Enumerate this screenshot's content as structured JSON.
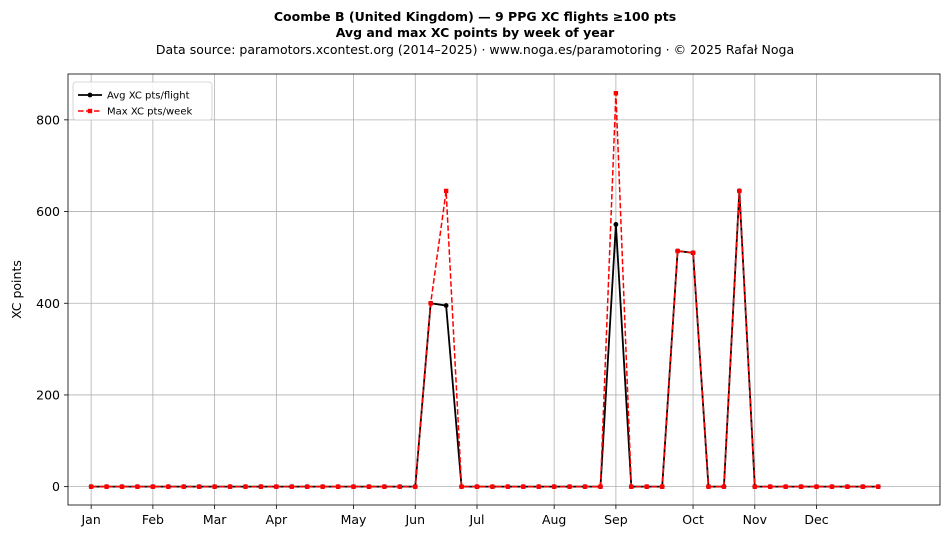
{
  "header": {
    "title_line1": "Coombe B (United Kingdom)  —  9 PPG XC flights ≥100 pts",
    "title_line2": "Avg and max XC points by week of year",
    "title_line3": "Data source: paramotors.xcontest.org (2014–2025)  ·  www.noga.es/paramotoring  ·  © 2025 Rafał Noga"
  },
  "chart_data": {
    "type": "line",
    "title": "Coombe B (United Kingdom)  —  9 PPG XC flights ≥100 pts",
    "subtitle": "Avg and max XC points by week of year",
    "xlabel": "",
    "ylabel": "XC points",
    "x_axis": "week of year",
    "xlim": [
      -1.5,
      55
    ],
    "ylim": [
      -40,
      900
    ],
    "y_ticks": [
      0,
      200,
      400,
      600,
      800
    ],
    "x_ticks": [
      {
        "label": "Jan",
        "week": 0
      },
      {
        "label": "Feb",
        "week": 4
      },
      {
        "label": "Mar",
        "week": 8
      },
      {
        "label": "Apr",
        "week": 12
      },
      {
        "label": "May",
        "week": 17
      },
      {
        "label": "Jun",
        "week": 21
      },
      {
        "label": "Jul",
        "week": 25
      },
      {
        "label": "Aug",
        "week": 30
      },
      {
        "label": "Sep",
        "week": 34
      },
      {
        "label": "Oct",
        "week": 39
      },
      {
        "label": "Nov",
        "week": 43
      },
      {
        "label": "Dec",
        "week": 47
      }
    ],
    "grid": true,
    "legend_position": "top-left",
    "x": [
      0,
      1,
      2,
      3,
      4,
      5,
      6,
      7,
      8,
      9,
      10,
      11,
      12,
      13,
      14,
      15,
      16,
      17,
      18,
      19,
      20,
      21,
      22,
      23,
      24,
      25,
      26,
      27,
      28,
      29,
      30,
      31,
      32,
      33,
      34,
      35,
      36,
      37,
      38,
      39,
      40,
      41,
      42,
      43,
      44,
      45,
      46,
      47,
      48,
      49,
      50,
      51
    ],
    "series": [
      {
        "name": "Avg XC pts/flight",
        "color": "#000000",
        "style": "solid",
        "marker": "circle",
        "values": [
          0,
          0,
          0,
          0,
          0,
          0,
          0,
          0,
          0,
          0,
          0,
          0,
          0,
          0,
          0,
          0,
          0,
          0,
          0,
          0,
          0,
          0,
          400,
          395,
          0,
          0,
          0,
          0,
          0,
          0,
          0,
          0,
          0,
          0,
          572,
          0,
          0,
          0,
          514,
          510,
          0,
          0,
          645,
          0,
          0,
          0,
          0,
          0,
          0,
          0,
          0,
          0
        ]
      },
      {
        "name": "Max XC pts/week",
        "color": "#ff0000",
        "style": "dashed",
        "marker": "square",
        "values": [
          0,
          0,
          0,
          0,
          0,
          0,
          0,
          0,
          0,
          0,
          0,
          0,
          0,
          0,
          0,
          0,
          0,
          0,
          0,
          0,
          0,
          0,
          400,
          645,
          0,
          0,
          0,
          0,
          0,
          0,
          0,
          0,
          0,
          0,
          858,
          0,
          0,
          0,
          514,
          510,
          0,
          0,
          645,
          0,
          0,
          0,
          0,
          0,
          0,
          0,
          0,
          0
        ]
      }
    ]
  }
}
